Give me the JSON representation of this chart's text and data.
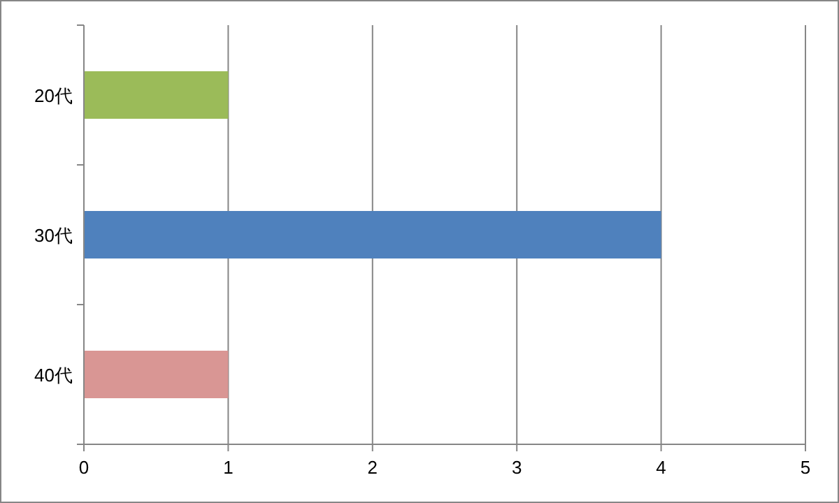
{
  "chart_data": {
    "type": "bar",
    "orientation": "horizontal",
    "categories": [
      "20代",
      "30代",
      "40代"
    ],
    "values": [
      1,
      4,
      1
    ],
    "colors": [
      "#9bbb59",
      "#4f81bd",
      "#d99694"
    ],
    "xlim": [
      0,
      5
    ],
    "xticks": [
      0,
      1,
      2,
      3,
      4,
      5
    ],
    "grid": "x"
  }
}
